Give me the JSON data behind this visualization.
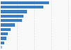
{
  "values": [
    3500,
    3100,
    1900,
    1650,
    1550,
    1050,
    750,
    560,
    420,
    280,
    130
  ],
  "bar_color": "#3d7fc1",
  "last_bar_color": "#9bbfe0",
  "background_color": "#f9f9f9",
  "plot_bg_color": "#f9f9f9",
  "figsize": [
    1.0,
    0.71
  ],
  "dpi": 100,
  "grid_color": "#e0e0e0"
}
